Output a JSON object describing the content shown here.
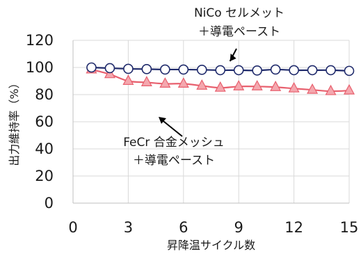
{
  "chart_data": {
    "type": "line",
    "xlabel": "昇降温サイクル数",
    "ylabel": "出力維持率（%）",
    "xlim": [
      0,
      15
    ],
    "ylim": [
      0,
      120
    ],
    "xticks": [
      0,
      3,
      6,
      9,
      12,
      15
    ],
    "yticks": [
      0,
      20,
      40,
      60,
      80,
      100,
      120
    ],
    "grid": true,
    "series": [
      {
        "name": "NiCo セルメット＋導電ペースト",
        "marker": "circle",
        "line_color": "#1f2a6b",
        "marker_fill": "#ffffff",
        "x": [
          1,
          2,
          3,
          4,
          5,
          6,
          7,
          8,
          9,
          10,
          11,
          12,
          13,
          14,
          15
        ],
        "y": [
          100,
          99.5,
          99,
          98.8,
          98.5,
          98.5,
          98.3,
          98,
          98,
          97.8,
          98.5,
          98,
          98,
          98,
          97.5
        ]
      },
      {
        "name": "FeCr 合金メッシュ＋導電ペースト",
        "marker": "triangle",
        "line_color": "#e8606e",
        "marker_fill": "#f4a7ae",
        "x": [
          1,
          2,
          3,
          4,
          5,
          6,
          7,
          8,
          9,
          10,
          11,
          12,
          13,
          14,
          15
        ],
        "y": [
          98.5,
          95,
          90,
          89,
          88,
          88,
          86.5,
          85,
          86,
          86,
          85.5,
          84.5,
          83.5,
          82.5,
          83
        ]
      }
    ],
    "annotations": [
      {
        "lines": [
          "NiCo セルメット",
          "＋導電ペースト"
        ],
        "x": 8.6,
        "y": 100
      },
      {
        "lines": [
          "FeCr 合金メッシュ",
          "＋導電ペースト"
        ],
        "x": 7,
        "y": 85
      }
    ]
  }
}
